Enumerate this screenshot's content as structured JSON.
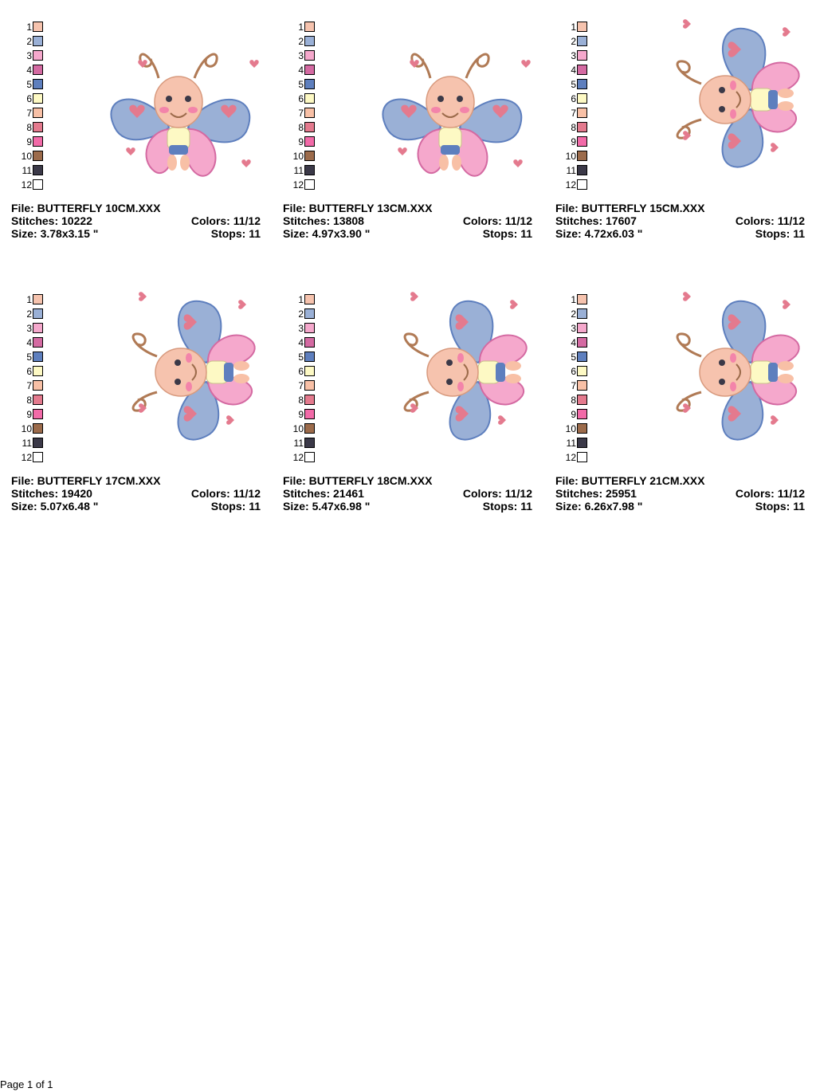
{
  "palette_colors": [
    {
      "number": "1",
      "color": "#f6c3ae"
    },
    {
      "number": "2",
      "color": "#9ab0d6"
    },
    {
      "number": "3",
      "color": "#f5a8cc"
    },
    {
      "number": "4",
      "color": "#d46aa2"
    },
    {
      "number": "5",
      "color": "#5e7fbe"
    },
    {
      "number": "6",
      "color": "#fdf9c4"
    },
    {
      "number": "7",
      "color": "#f8c0a6"
    },
    {
      "number": "8",
      "color": "#e47a8e"
    },
    {
      "number": "9",
      "color": "#f26aa8"
    },
    {
      "number": "10",
      "color": "#9c6b4b"
    },
    {
      "number": "11",
      "color": "#3b3948"
    },
    {
      "number": "12",
      "color": "#ffffff"
    }
  ],
  "designs": [
    {
      "file_label": "File:",
      "file": "BUTTERFLY 10CM.XXX",
      "stitches_label": "Stitches:",
      "stitches": "10222",
      "colors_label": "Colors:",
      "colors": "11/12",
      "size_label": "Size:",
      "size": "3.78x3.15 \"",
      "stops_label": "Stops:",
      "stops": "11",
      "orientation": "upright"
    },
    {
      "file_label": "File:",
      "file": "BUTTERFLY 13CM.XXX",
      "stitches_label": "Stitches:",
      "stitches": "13808",
      "colors_label": "Colors:",
      "colors": "11/12",
      "size_label": "Size:",
      "size": "4.97x3.90 \"",
      "stops_label": "Stops:",
      "stops": "11",
      "orientation": "upright"
    },
    {
      "file_label": "File:",
      "file": "BUTTERFLY 15CM.XXX",
      "stitches_label": "Stitches:",
      "stitches": "17607",
      "colors_label": "Colors:",
      "colors": "11/12",
      "size_label": "Size:",
      "size": "4.72x6.03 \"",
      "stops_label": "Stops:",
      "stops": "11",
      "orientation": "rotated"
    },
    {
      "file_label": "File:",
      "file": "BUTTERFLY 17CM.XXX",
      "stitches_label": "Stitches:",
      "stitches": "19420",
      "colors_label": "Colors:",
      "colors": "11/12",
      "size_label": "Size:",
      "size": "5.07x6.48 \"",
      "stops_label": "Stops:",
      "stops": "11",
      "orientation": "rotated"
    },
    {
      "file_label": "File:",
      "file": "BUTTERFLY 18CM.XXX",
      "stitches_label": "Stitches:",
      "stitches": "21461",
      "colors_label": "Colors:",
      "colors": "11/12",
      "size_label": "Size:",
      "size": "5.47x6.98 \"",
      "stops_label": "Stops:",
      "stops": "11",
      "orientation": "rotated"
    },
    {
      "file_label": "File:",
      "file": "BUTTERFLY 21CM.XXX",
      "stitches_label": "Stitches:",
      "stitches": "25951",
      "colors_label": "Colors:",
      "colors": "11/12",
      "size_label": "Size:",
      "size": "6.26x7.98 \"",
      "stops_label": "Stops:",
      "stops": "11",
      "orientation": "rotated"
    }
  ],
  "footer": {
    "page_text": "Page 1 of 1"
  }
}
